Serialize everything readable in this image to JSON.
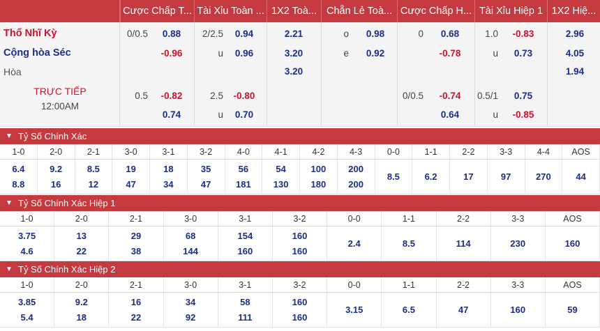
{
  "headers": [
    "Cược Chấp T...",
    "Tài Xỉu Toàn ...",
    "1X2 Toà...",
    "Chẵn Lẻ Toà...",
    "Cược Chấp H...",
    "Tài Xỉu Hiệp 1",
    "1X2 Hiệ..."
  ],
  "match": {
    "home": "Thổ Nhĩ Kỳ",
    "away": "Cộng hòa Séc",
    "draw": "Hòa",
    "status": "TRỰC TIẾP",
    "time": "12:00AM",
    "row1": {
      "hcp_line": "0/0.5",
      "hcp_odds": "0.88",
      "ou_line": "2/2.5",
      "ou_odds": "0.94",
      "x12": "2.21",
      "oe_label": "o",
      "oe_odds": "0.98",
      "h1_hcp_line": "0",
      "h1_hcp_odds": "0.68",
      "h1_ou_line": "1.0",
      "h1_ou_odds": "-0.83",
      "h1_x12": "2.96"
    },
    "row2": {
      "hcp_odds": "-0.96",
      "ou_label": "u",
      "ou_odds": "0.96",
      "x12": "3.20",
      "oe_label": "e",
      "oe_odds": "0.92",
      "h1_hcp_odds": "-0.78",
      "h1_ou_label": "u",
      "h1_ou_odds": "0.73",
      "h1_x12": "4.05"
    },
    "row3": {
      "x12": "3.20",
      "h1_x12": "1.94"
    },
    "row4": {
      "hcp_line": "0.5",
      "hcp_odds": "-0.82",
      "ou_line": "2.5",
      "ou_odds": "-0.80",
      "h1_hcp_line": "0/0.5",
      "h1_hcp_odds": "-0.74",
      "h1_ou_line": "0.5/1",
      "h1_ou_odds": "0.75"
    },
    "row5": {
      "hcp_odds": "0.74",
      "ou_label": "u",
      "ou_odds": "0.70",
      "h1_hcp_odds": "0.64",
      "h1_ou_label": "u",
      "h1_ou_odds": "-0.85"
    }
  },
  "sections": [
    {
      "title": "Tỷ Số Chính Xác",
      "cols": [
        [
          "1-0",
          "6.4",
          "8.8"
        ],
        [
          "2-0",
          "9.2",
          "16"
        ],
        [
          "2-1",
          "8.5",
          "12"
        ],
        [
          "3-0",
          "19",
          "47"
        ],
        [
          "3-1",
          "18",
          "34"
        ],
        [
          "3-2",
          "35",
          "47"
        ],
        [
          "4-0",
          "56",
          "181"
        ],
        [
          "4-1",
          "54",
          "130"
        ],
        [
          "4-2",
          "100",
          "180"
        ],
        [
          "4-3",
          "200",
          "200"
        ],
        [
          "0-0",
          "8.5"
        ],
        [
          "1-1",
          "6.2"
        ],
        [
          "2-2",
          "17"
        ],
        [
          "3-3",
          "97"
        ],
        [
          "4-4",
          "270"
        ],
        [
          "AOS",
          "44"
        ]
      ]
    },
    {
      "title": "Tỷ Số Chính Xác Hiệp 1",
      "cols": [
        [
          "1-0",
          "3.75",
          "4.6"
        ],
        [
          "2-0",
          "13",
          "22"
        ],
        [
          "2-1",
          "29",
          "38"
        ],
        [
          "3-0",
          "68",
          "144"
        ],
        [
          "3-1",
          "154",
          "160"
        ],
        [
          "3-2",
          "160",
          "160"
        ],
        [
          "0-0",
          "2.4"
        ],
        [
          "1-1",
          "8.5"
        ],
        [
          "2-2",
          "114"
        ],
        [
          "3-3",
          "230"
        ],
        [
          "AOS",
          "160"
        ]
      ]
    },
    {
      "title": "Tỷ Số Chính Xác Hiệp 2",
      "cols": [
        [
          "1-0",
          "3.85",
          "5.4"
        ],
        [
          "2-0",
          "9.2",
          "18"
        ],
        [
          "2-1",
          "16",
          "22"
        ],
        [
          "3-0",
          "34",
          "92"
        ],
        [
          "3-1",
          "58",
          "111"
        ],
        [
          "3-2",
          "160",
          "160"
        ],
        [
          "0-0",
          "3.15"
        ],
        [
          "1-1",
          "6.5"
        ],
        [
          "2-2",
          "47"
        ],
        [
          "3-3",
          "160"
        ],
        [
          "AOS",
          "59"
        ]
      ]
    }
  ]
}
